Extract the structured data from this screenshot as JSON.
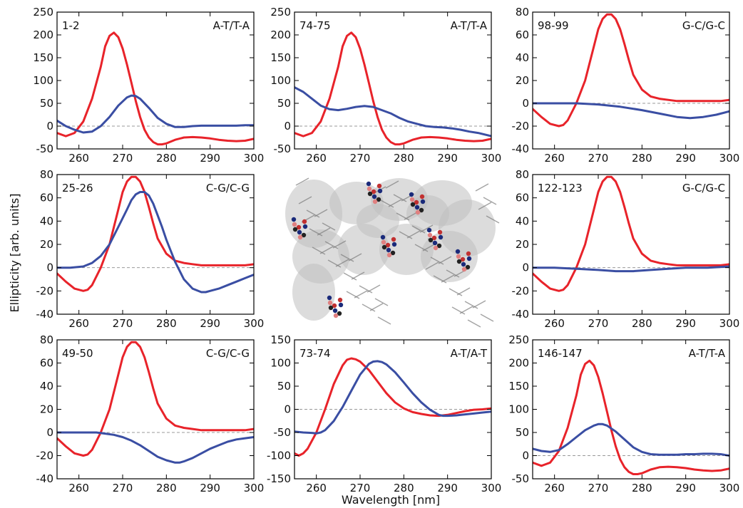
{
  "figure": {
    "ylabel": "Ellipticity [arb. units]",
    "xlabel": "Wavelength [nm]",
    "center_image": "dna-nucleosome-molecular-model"
  },
  "colors": {
    "series_red": "#e8232a",
    "series_blue": "#3a4ea3",
    "zero_line": "#999999",
    "axis": "#000000"
  },
  "chart_data": [
    {
      "type": "line",
      "id": "p1",
      "pair": "1-2",
      "label": "A-T/T-A",
      "xlim": [
        255,
        300
      ],
      "ylim": [
        -50,
        250
      ],
      "xticks": [
        260,
        270,
        280,
        290,
        300
      ],
      "yticks": [
        -50,
        0,
        50,
        100,
        150,
        200,
        250
      ],
      "series": [
        {
          "color": "#e8232a",
          "x": [
            255,
            257,
            259,
            261,
            263,
            265,
            266,
            267,
            268,
            269,
            270,
            271,
            272,
            273,
            274,
            275,
            276,
            277,
            278,
            279,
            280,
            282,
            284,
            286,
            288,
            290,
            292,
            294,
            296,
            298,
            300
          ],
          "y": [
            -15,
            -22,
            -15,
            10,
            60,
            130,
            175,
            198,
            205,
            195,
            170,
            135,
            95,
            55,
            20,
            -8,
            -25,
            -35,
            -40,
            -40,
            -38,
            -30,
            -25,
            -24,
            -25,
            -27,
            -30,
            -32,
            -33,
            -32,
            -28
          ]
        },
        {
          "color": "#3a4ea3",
          "x": [
            255,
            257,
            259,
            261,
            263,
            265,
            267,
            269,
            271,
            272,
            273,
            274,
            276,
            278,
            280,
            282,
            284,
            286,
            288,
            290,
            292,
            294,
            296,
            298,
            300
          ],
          "y": [
            12,
            0,
            -8,
            -14,
            -12,
            0,
            20,
            45,
            63,
            67,
            66,
            60,
            40,
            18,
            5,
            -2,
            -2,
            0,
            1,
            1,
            1,
            1,
            1,
            2,
            2
          ]
        }
      ]
    },
    {
      "type": "line",
      "id": "p2",
      "pair": "74-75",
      "label": "A-T/T-A",
      "xlim": [
        255,
        300
      ],
      "ylim": [
        -50,
        250
      ],
      "xticks": [
        260,
        270,
        280,
        290,
        300
      ],
      "yticks": [
        -50,
        0,
        50,
        100,
        150,
        200,
        250
      ],
      "series": [
        {
          "color": "#e8232a",
          "x": [
            255,
            257,
            259,
            261,
            263,
            265,
            266,
            267,
            268,
            269,
            270,
            271,
            272,
            273,
            274,
            275,
            276,
            277,
            278,
            279,
            280,
            282,
            284,
            286,
            288,
            290,
            292,
            294,
            296,
            298,
            300
          ],
          "y": [
            -15,
            -22,
            -15,
            10,
            60,
            130,
            175,
            198,
            205,
            195,
            170,
            135,
            95,
            55,
            20,
            -8,
            -25,
            -35,
            -40,
            -40,
            -38,
            -30,
            -25,
            -24,
            -25,
            -27,
            -30,
            -32,
            -33,
            -32,
            -28
          ]
        },
        {
          "color": "#3a4ea3",
          "x": [
            255,
            257,
            259,
            261,
            263,
            265,
            267,
            269,
            271,
            273,
            275,
            277,
            279,
            281,
            283,
            285,
            287,
            289,
            291,
            293,
            295,
            297,
            300
          ],
          "y": [
            85,
            75,
            60,
            45,
            37,
            35,
            38,
            42,
            44,
            42,
            35,
            28,
            18,
            10,
            5,
            0,
            -2,
            -3,
            -5,
            -8,
            -12,
            -15,
            -22
          ]
        }
      ]
    },
    {
      "type": "line",
      "id": "p3",
      "pair": "98-99",
      "label": "G-C/G-C",
      "xlim": [
        255,
        300
      ],
      "ylim": [
        -40,
        80
      ],
      "xticks": [
        260,
        270,
        280,
        290,
        300
      ],
      "yticks": [
        -40,
        -20,
        0,
        20,
        40,
        60,
        80
      ],
      "series": [
        {
          "color": "#e8232a",
          "x": [
            255,
            257,
            259,
            261,
            262,
            263,
            265,
            267,
            269,
            270,
            271,
            272,
            273,
            274,
            275,
            276,
            277,
            278,
            280,
            282,
            284,
            286,
            288,
            290,
            292,
            294,
            296,
            298,
            300
          ],
          "y": [
            -5,
            -12,
            -18,
            -20,
            -19,
            -15,
            0,
            20,
            50,
            65,
            74,
            78,
            78,
            74,
            65,
            52,
            38,
            25,
            12,
            6,
            4,
            3,
            2,
            2,
            2,
            2,
            2,
            2,
            3
          ]
        },
        {
          "color": "#3a4ea3",
          "x": [
            255,
            260,
            265,
            270,
            275,
            280,
            284,
            288,
            291,
            294,
            297,
            300
          ],
          "y": [
            0,
            0,
            0,
            -1,
            -3,
            -6,
            -9,
            -12,
            -13,
            -12,
            -10,
            -7
          ]
        }
      ]
    },
    {
      "type": "line",
      "id": "p4",
      "pair": "25-26",
      "label": "C-G/C-G",
      "xlim": [
        255,
        300
      ],
      "ylim": [
        -40,
        80
      ],
      "xticks": [
        260,
        270,
        280,
        290,
        300
      ],
      "yticks": [
        -40,
        -20,
        0,
        20,
        40,
        60,
        80
      ],
      "series": [
        {
          "color": "#e8232a",
          "x": [
            255,
            257,
            259,
            261,
            262,
            263,
            265,
            267,
            269,
            270,
            271,
            272,
            273,
            274,
            275,
            276,
            277,
            278,
            280,
            282,
            284,
            286,
            288,
            290,
            292,
            294,
            296,
            298,
            300
          ],
          "y": [
            -5,
            -12,
            -18,
            -20,
            -19,
            -15,
            0,
            20,
            50,
            65,
            74,
            78,
            78,
            74,
            65,
            52,
            38,
            25,
            12,
            6,
            4,
            3,
            2,
            2,
            2,
            2,
            2,
            2,
            3
          ]
        },
        {
          "color": "#3a4ea3",
          "x": [
            255,
            258,
            261,
            263,
            265,
            267,
            269,
            271,
            272,
            273,
            274,
            275,
            276,
            277,
            278,
            279,
            280,
            282,
            284,
            286,
            288,
            289,
            290,
            292,
            294,
            296,
            298,
            300
          ],
          "y": [
            0,
            0,
            1,
            4,
            10,
            20,
            35,
            50,
            58,
            63,
            65,
            65,
            62,
            55,
            45,
            35,
            24,
            5,
            -10,
            -18,
            -21,
            -21,
            -20,
            -18,
            -15,
            -12,
            -9,
            -6
          ]
        }
      ]
    },
    {
      "type": "line",
      "id": "p5",
      "pair": "122-123",
      "label": "G-C/G-C",
      "xlim": [
        255,
        300
      ],
      "ylim": [
        -40,
        80
      ],
      "xticks": [
        260,
        270,
        280,
        290,
        300
      ],
      "yticks": [
        -40,
        -20,
        0,
        20,
        40,
        60,
        80
      ],
      "series": [
        {
          "color": "#e8232a",
          "x": [
            255,
            257,
            259,
            261,
            262,
            263,
            265,
            267,
            269,
            270,
            271,
            272,
            273,
            274,
            275,
            276,
            277,
            278,
            280,
            282,
            284,
            286,
            288,
            290,
            292,
            294,
            296,
            298,
            300
          ],
          "y": [
            -5,
            -12,
            -18,
            -20,
            -19,
            -15,
            0,
            20,
            50,
            65,
            74,
            78,
            78,
            74,
            65,
            52,
            38,
            25,
            12,
            6,
            4,
            3,
            2,
            2,
            2,
            2,
            2,
            2,
            3
          ]
        },
        {
          "color": "#3a4ea3",
          "x": [
            255,
            260,
            265,
            270,
            274,
            278,
            282,
            286,
            290,
            295,
            300
          ],
          "y": [
            0,
            0,
            -1,
            -2,
            -3,
            -3,
            -2,
            -1,
            0,
            0,
            1
          ]
        }
      ]
    },
    {
      "type": "line",
      "id": "p6",
      "pair": "49-50",
      "label": "C-G/C-G",
      "xlim": [
        255,
        300
      ],
      "ylim": [
        -40,
        80
      ],
      "xticks": [
        260,
        270,
        280,
        290,
        300
      ],
      "yticks": [
        -40,
        -20,
        0,
        20,
        40,
        60,
        80
      ],
      "series": [
        {
          "color": "#e8232a",
          "x": [
            255,
            257,
            259,
            261,
            262,
            263,
            265,
            267,
            269,
            270,
            271,
            272,
            273,
            274,
            275,
            276,
            277,
            278,
            280,
            282,
            284,
            286,
            288,
            290,
            292,
            294,
            296,
            298,
            300
          ],
          "y": [
            -5,
            -12,
            -18,
            -20,
            -19,
            -15,
            0,
            20,
            50,
            65,
            74,
            78,
            78,
            74,
            65,
            52,
            38,
            25,
            12,
            6,
            4,
            3,
            2,
            2,
            2,
            2,
            2,
            2,
            3
          ]
        },
        {
          "color": "#3a4ea3",
          "x": [
            255,
            260,
            264,
            266,
            268,
            270,
            272,
            274,
            276,
            278,
            280,
            282,
            283,
            284,
            286,
            288,
            290,
            292,
            294,
            296,
            298,
            300
          ],
          "y": [
            0,
            0,
            0,
            -1,
            -2,
            -4,
            -7,
            -11,
            -16,
            -21,
            -24,
            -26,
            -26,
            -25,
            -22,
            -18,
            -14,
            -11,
            -8,
            -6,
            -5,
            -4
          ]
        }
      ]
    },
    {
      "type": "line",
      "id": "p7",
      "pair": "73-74",
      "label": "A-T/A-T",
      "xlim": [
        255,
        300
      ],
      "ylim": [
        -150,
        150
      ],
      "xticks": [
        260,
        270,
        280,
        290,
        300
      ],
      "yticks": [
        -150,
        -100,
        -50,
        0,
        50,
        100,
        150
      ],
      "series": [
        {
          "color": "#e8232a",
          "x": [
            255,
            256,
            257,
            258,
            260,
            262,
            264,
            266,
            267,
            268,
            269,
            270,
            272,
            274,
            276,
            278,
            280,
            282,
            284,
            286,
            288,
            290,
            292,
            294,
            296,
            298,
            300
          ],
          "y": [
            -95,
            -100,
            -95,
            -85,
            -50,
            0,
            55,
            95,
            107,
            110,
            108,
            103,
            85,
            60,
            35,
            15,
            2,
            -6,
            -10,
            -13,
            -14,
            -12,
            -8,
            -4,
            -1,
            0,
            2
          ]
        },
        {
          "color": "#3a4ea3",
          "x": [
            255,
            257,
            259,
            260,
            261,
            262,
            263,
            264,
            265,
            266,
            268,
            270,
            272,
            273,
            274,
            275,
            276,
            278,
            280,
            282,
            284,
            286,
            288,
            289,
            290,
            292,
            294,
            296,
            298,
            300
          ],
          "y": [
            -48,
            -50,
            -51,
            -52,
            -50,
            -45,
            -35,
            -25,
            -10,
            5,
            40,
            75,
            98,
            103,
            104,
            102,
            97,
            80,
            58,
            35,
            15,
            -1,
            -12,
            -14,
            -14,
            -13,
            -11,
            -9,
            -7,
            -5
          ]
        }
      ]
    },
    {
      "type": "line",
      "id": "p8",
      "pair": "146-147",
      "label": "A-T/T-A",
      "xlim": [
        255,
        300
      ],
      "ylim": [
        -50,
        250
      ],
      "xticks": [
        260,
        270,
        280,
        290,
        300
      ],
      "yticks": [
        -50,
        0,
        50,
        100,
        150,
        200,
        250
      ],
      "series": [
        {
          "color": "#e8232a",
          "x": [
            255,
            257,
            259,
            261,
            263,
            265,
            266,
            267,
            268,
            269,
            270,
            271,
            272,
            273,
            274,
            275,
            276,
            277,
            278,
            279,
            280,
            282,
            284,
            286,
            288,
            290,
            292,
            294,
            296,
            298,
            300
          ],
          "y": [
            -15,
            -22,
            -15,
            10,
            60,
            130,
            175,
            198,
            205,
            195,
            170,
            135,
            95,
            55,
            20,
            -8,
            -25,
            -35,
            -40,
            -40,
            -38,
            -30,
            -25,
            -24,
            -25,
            -27,
            -30,
            -32,
            -33,
            -32,
            -28
          ]
        },
        {
          "color": "#3a4ea3",
          "x": [
            255,
            257,
            259,
            261,
            263,
            265,
            267,
            269,
            270,
            271,
            272,
            274,
            276,
            278,
            280,
            282,
            284,
            286,
            288,
            290,
            292,
            294,
            296,
            298,
            300
          ],
          "y": [
            15,
            10,
            8,
            12,
            25,
            40,
            55,
            65,
            68,
            68,
            65,
            52,
            35,
            18,
            8,
            3,
            2,
            2,
            2,
            3,
            3,
            4,
            4,
            3,
            0
          ]
        }
      ]
    }
  ]
}
